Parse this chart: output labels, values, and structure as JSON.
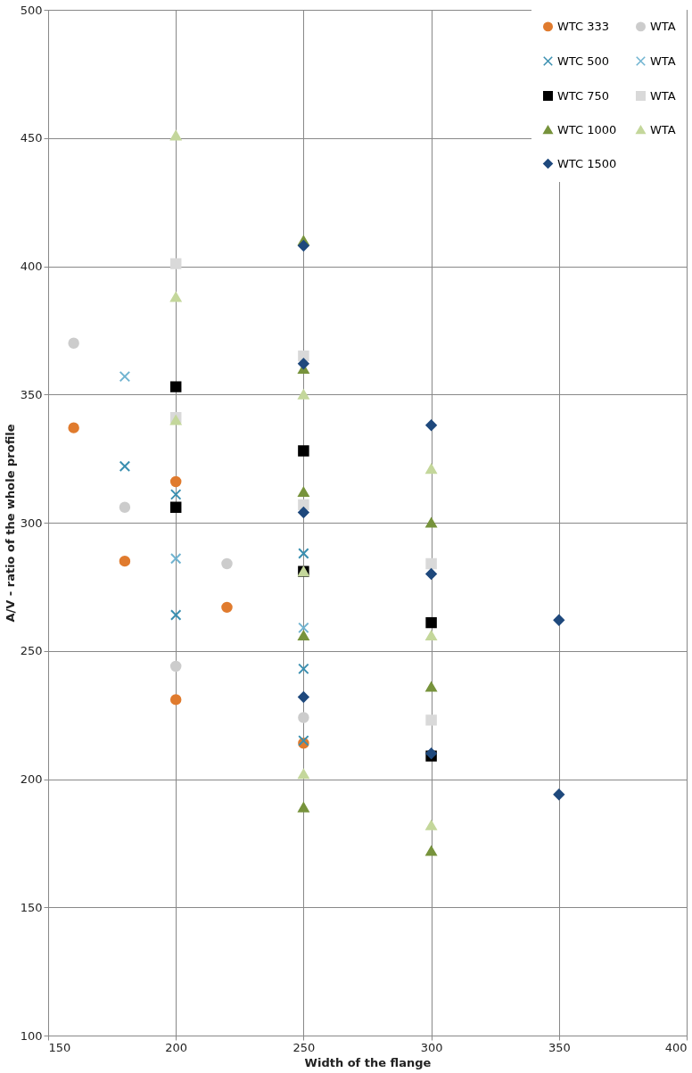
{
  "chart_data": {
    "type": "scatter",
    "xlabel": "Width of the flange",
    "ylabel": "A/V - ratio of the whole profile",
    "xlim": [
      150,
      400
    ],
    "xticks": [
      150,
      200,
      250,
      300,
      350,
      400
    ],
    "ylim": [
      100,
      500
    ],
    "yticks": [
      100,
      150,
      200,
      250,
      300,
      350,
      400,
      450,
      500
    ],
    "grid": true,
    "legend": "top right",
    "series": [
      {
        "name": "WTC 333",
        "color": "#e07b2e",
        "marker": "circle",
        "x": [
          160,
          180,
          200,
          200,
          220,
          250
        ],
        "values": [
          337,
          285,
          316,
          231,
          267,
          214
        ]
      },
      {
        "name": "WTA",
        "color": "#cccccc",
        "marker": "circle",
        "x": [
          160,
          180,
          200,
          220,
          250
        ],
        "values": [
          370,
          306,
          244,
          284,
          224
        ]
      },
      {
        "name": "WTC 500",
        "color": "#3a8fb0",
        "marker": "cross",
        "x": [
          180,
          200,
          200,
          250,
          250,
          250
        ],
        "values": [
          322,
          311,
          264,
          288,
          243,
          215
        ]
      },
      {
        "name": "WTA",
        "color": "#6fb3d0",
        "marker": "cross",
        "x": [
          180,
          200,
          250
        ],
        "values": [
          357,
          286,
          259
        ]
      },
      {
        "name": "WTC 750",
        "color": "#000000",
        "marker": "square",
        "x": [
          200,
          200,
          250,
          250,
          300,
          300
        ],
        "values": [
          353,
          306,
          328,
          281,
          261,
          209
        ]
      },
      {
        "name": "WTA",
        "color": "#d9d9d9",
        "marker": "square",
        "x": [
          200,
          200,
          250,
          250,
          300,
          300
        ],
        "values": [
          401,
          341,
          365,
          307,
          284,
          223
        ]
      },
      {
        "name": "WTC 1000",
        "color": "#77933c",
        "marker": "triangle",
        "x": [
          250,
          250,
          250,
          250,
          250,
          300,
          300,
          300
        ],
        "values": [
          410,
          360,
          312,
          256,
          189,
          300,
          236,
          172
        ]
      },
      {
        "name": "WTA",
        "color": "#c4d79b",
        "marker": "triangle",
        "x": [
          200,
          200,
          200,
          250,
          250,
          250,
          300,
          300,
          300
        ],
        "values": [
          451,
          388,
          340,
          350,
          281,
          202,
          321,
          256,
          182
        ]
      },
      {
        "name": "WTC 1500",
        "color": "#1f497d",
        "marker": "diamond",
        "x": [
          250,
          250,
          250,
          250,
          300,
          300,
          300,
          350,
          350
        ],
        "values": [
          408,
          362,
          304,
          232,
          338,
          280,
          210,
          262,
          194
        ]
      }
    ]
  }
}
